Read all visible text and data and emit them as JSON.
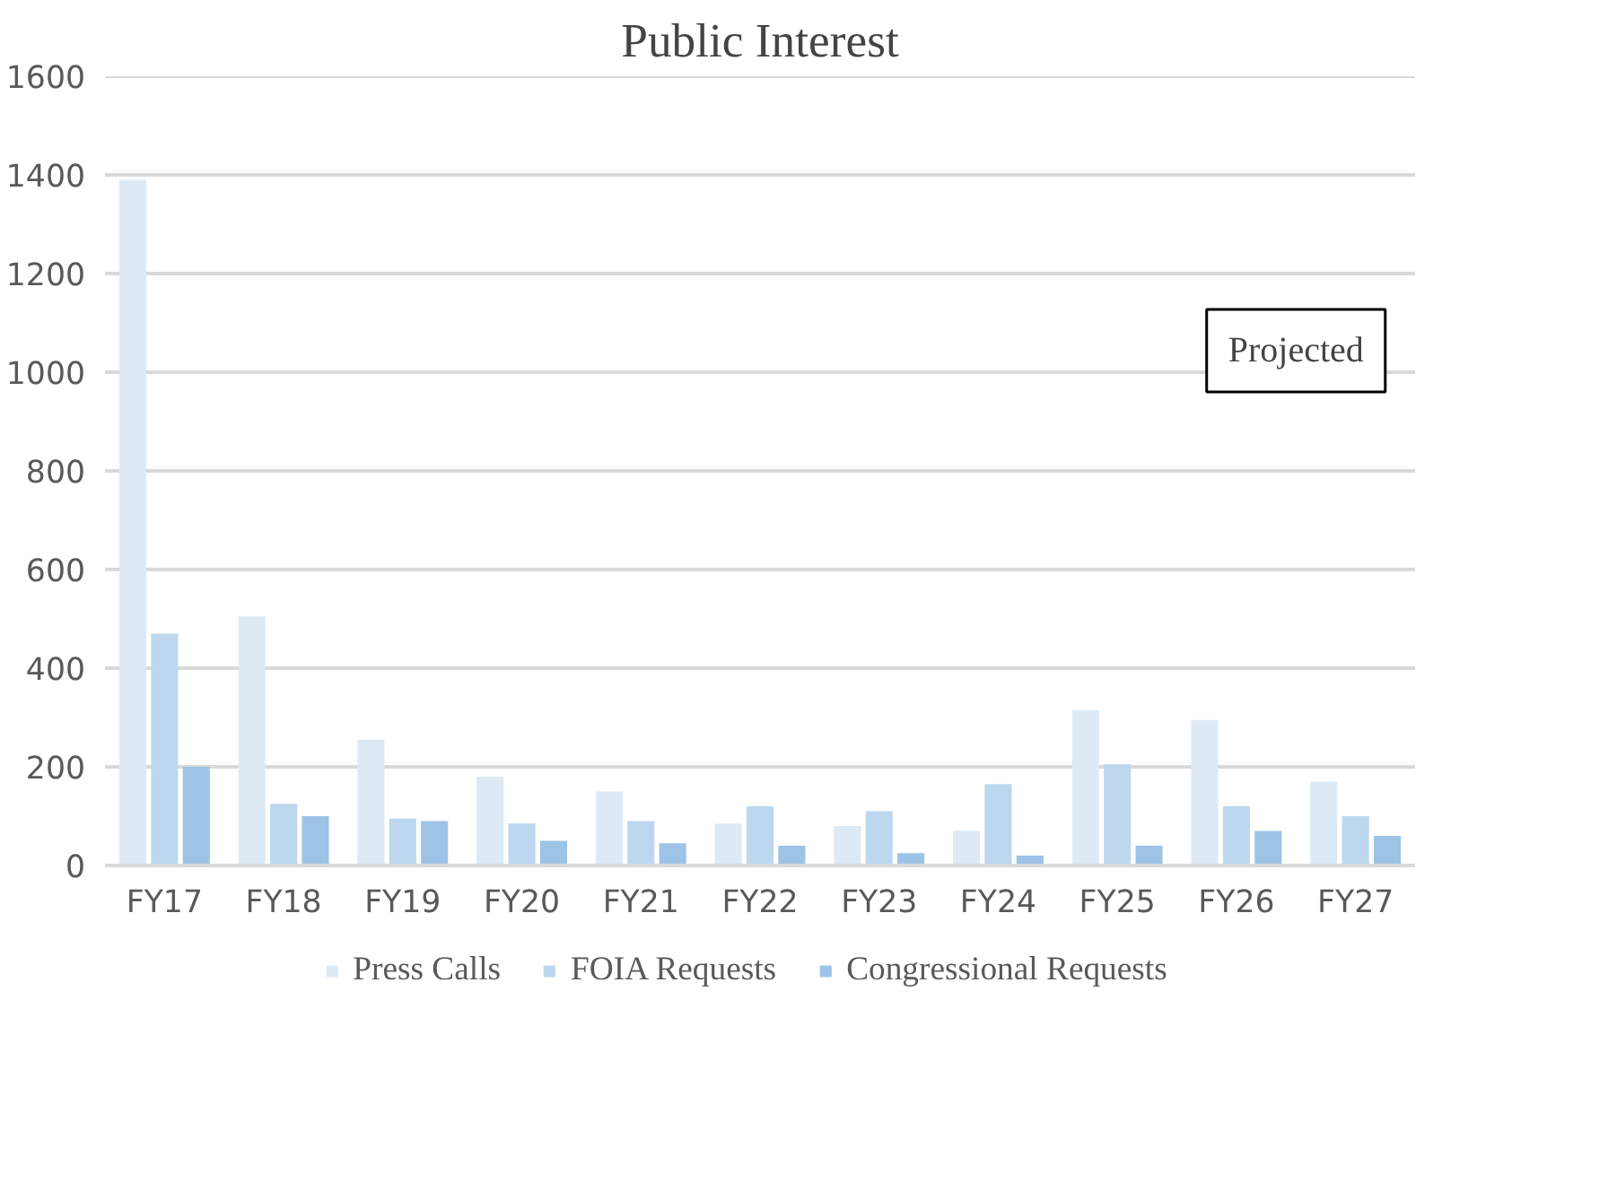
{
  "chart_data": {
    "type": "bar",
    "title": "Public Interest",
    "categories": [
      "FY17",
      "FY18",
      "FY19",
      "FY20",
      "FY21",
      "FY22",
      "FY23",
      "FY24",
      "FY25",
      "FY26",
      "FY27"
    ],
    "series": [
      {
        "name": "Press Calls",
        "color": "#ddeaf6",
        "values": [
          1390,
          505,
          255,
          180,
          150,
          85,
          80,
          70,
          315,
          295,
          170
        ]
      },
      {
        "name": "FOIA Requests",
        "color": "#bdd7ee",
        "values": [
          470,
          125,
          95,
          85,
          90,
          120,
          110,
          165,
          205,
          120,
          100
        ]
      },
      {
        "name": "Congressional Requests",
        "color": "#9dc3e6",
        "values": [
          200,
          100,
          90,
          50,
          45,
          40,
          25,
          20,
          40,
          70,
          60
        ]
      }
    ],
    "ylim": [
      0,
      1600
    ],
    "yticks": [
      0,
      200,
      400,
      600,
      800,
      1000,
      1200,
      1400,
      1600
    ],
    "grid": "y",
    "legend": "bottom",
    "annotations": [
      "Projected"
    ]
  }
}
